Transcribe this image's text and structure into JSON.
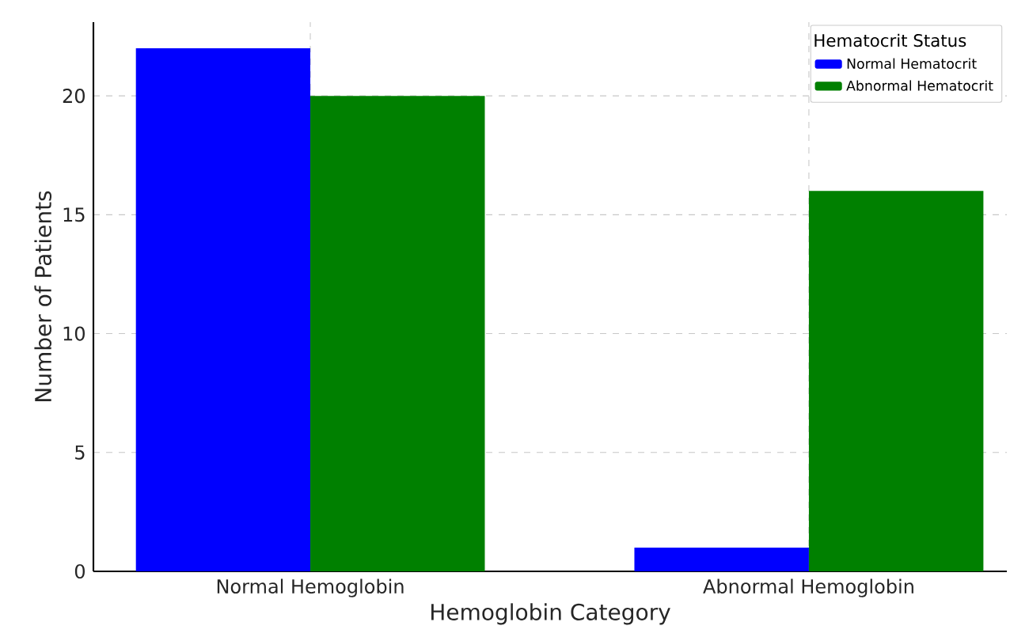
{
  "chart_data": {
    "type": "bar",
    "xlabel": "Hemoglobin Category",
    "ylabel": "Number of Patients",
    "legend_title": "Hematocrit Status",
    "categories": [
      "Normal Hemoglobin",
      "Abnormal Hemoglobin"
    ],
    "series": [
      {
        "name": "Normal Hematocrit",
        "color": "#0000ff",
        "values": [
          22,
          1
        ]
      },
      {
        "name": "Abnormal Hematocrit",
        "color": "#008000",
        "values": [
          20,
          16
        ]
      }
    ],
    "ylim": [
      0,
      23.1
    ],
    "yticks": [
      0,
      5,
      10,
      15,
      20
    ],
    "grid": true,
    "legend": "top right"
  }
}
